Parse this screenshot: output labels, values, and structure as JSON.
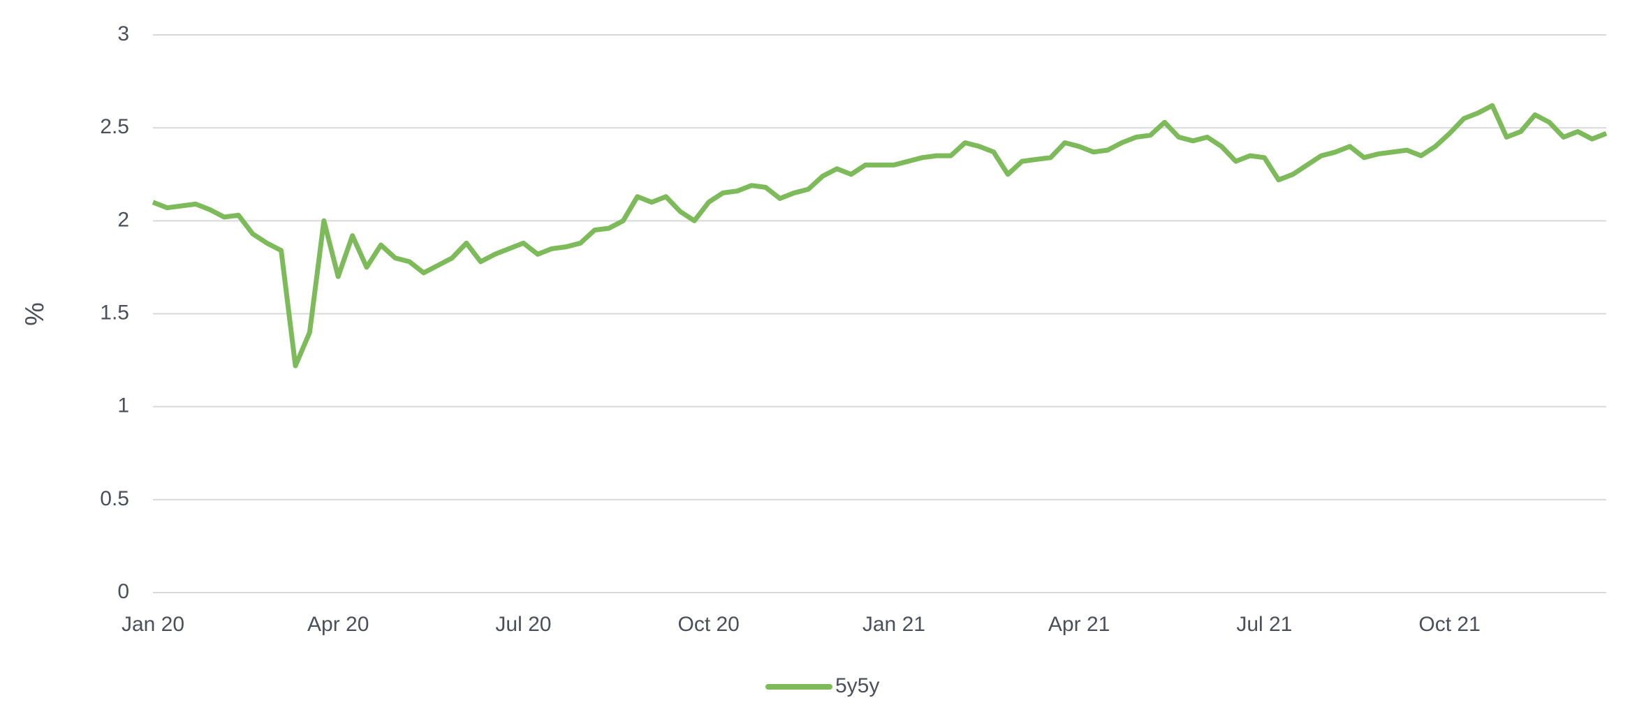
{
  "chart_data": {
    "type": "line",
    "y_label": "%",
    "categories": [
      "Jan 20",
      null,
      null,
      null,
      null,
      null,
      null,
      null,
      null,
      null,
      null,
      null,
      null,
      "Apr 20",
      null,
      null,
      null,
      null,
      null,
      null,
      null,
      null,
      null,
      null,
      null,
      null,
      "Jul 20",
      null,
      null,
      null,
      null,
      null,
      null,
      null,
      null,
      null,
      null,
      null,
      null,
      "Oct 20",
      null,
      null,
      null,
      null,
      null,
      null,
      null,
      null,
      null,
      null,
      null,
      null,
      "Jan 21",
      null,
      null,
      null,
      null,
      null,
      null,
      null,
      null,
      null,
      null,
      null,
      null,
      "Apr 21",
      null,
      null,
      null,
      null,
      null,
      null,
      null,
      null,
      null,
      null,
      null,
      null,
      "Jul 21",
      null,
      null,
      null,
      null,
      null,
      null,
      null,
      null,
      null,
      null,
      null,
      null,
      "Oct 21",
      null,
      null,
      null,
      null,
      null,
      null,
      null,
      null,
      null,
      null,
      null
    ],
    "series": [
      {
        "name": "5y5y",
        "color": "#7dbb5a",
        "values": [
          2.1,
          2.07,
          2.08,
          2.09,
          2.06,
          2.02,
          2.03,
          1.93,
          1.88,
          1.84,
          1.22,
          1.4,
          2.0,
          1.7,
          1.92,
          1.75,
          1.87,
          1.8,
          1.78,
          1.72,
          1.76,
          1.8,
          1.88,
          1.78,
          1.82,
          1.85,
          1.88,
          1.82,
          1.85,
          1.86,
          1.88,
          1.95,
          1.96,
          2.0,
          2.13,
          2.1,
          2.13,
          2.05,
          2.0,
          2.1,
          2.15,
          2.16,
          2.19,
          2.18,
          2.12,
          2.15,
          2.17,
          2.24,
          2.28,
          2.25,
          2.3,
          2.3,
          2.3,
          2.32,
          2.34,
          2.35,
          2.35,
          2.42,
          2.4,
          2.37,
          2.25,
          2.32,
          2.33,
          2.34,
          2.42,
          2.4,
          2.37,
          2.38,
          2.42,
          2.45,
          2.46,
          2.53,
          2.45,
          2.43,
          2.45,
          2.4,
          2.32,
          2.35,
          2.34,
          2.22,
          2.25,
          2.3,
          2.35,
          2.37,
          2.4,
          2.34,
          2.36,
          2.37,
          2.38,
          2.35,
          2.4,
          2.47,
          2.55,
          2.58,
          2.62,
          2.45,
          2.48,
          2.57,
          2.53,
          2.45,
          2.48,
          2.44,
          2.47
        ]
      }
    ],
    "ylim": [
      0,
      3
    ],
    "yticks": [
      0,
      0.5,
      1,
      1.5,
      2,
      2.5,
      3
    ],
    "grid": true,
    "legend": "bottom"
  }
}
